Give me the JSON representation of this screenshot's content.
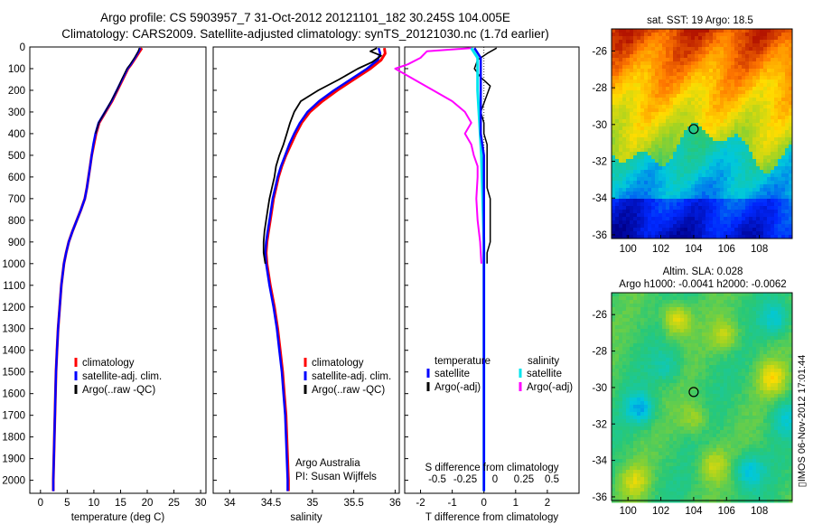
{
  "title_line1": "Argo profile: CS 5903957_7 31-Oct-2012 20121101_182 30.245S 104.005E",
  "title_line2": "Climatology: CARS2009. Satellite-adjusted climatology: synTS_20121030.nc (1.7d earlier)",
  "timestamp": "▯IMOS 06-Nov-2012 17:01:44",
  "depth_ticks": [
    "0",
    "100",
    "200",
    "300",
    "400",
    "500",
    "600",
    "700",
    "800",
    "900",
    "1000",
    "1100",
    "1200",
    "1300",
    "1400",
    "1500",
    "1600",
    "1700",
    "1800",
    "1900",
    "2000"
  ],
  "colors": {
    "climatology": "#ff0000",
    "satellite": "#0000ff",
    "argo": "#000000",
    "sal_satellite": "#00e5ee",
    "sal_argo": "#ff00ff"
  },
  "chart_data": [
    {
      "id": "temperature",
      "type": "line",
      "xlabel": "temperature (deg C)",
      "ylabel": "depth",
      "xlim": [
        -2,
        31
      ],
      "ylim": [
        2060,
        0
      ],
      "xticks": [
        "0",
        "5",
        "10",
        "15",
        "20",
        "25",
        "30"
      ],
      "legend": [
        "climatology",
        "satellite-adj. clim.",
        "Argo(..raw -QC)"
      ],
      "legend_position": "center-right",
      "series": [
        {
          "name": "climatology",
          "depth": [
            5,
            20,
            50,
            80,
            100,
            150,
            200,
            250,
            300,
            350,
            400,
            450,
            500,
            550,
            600,
            650,
            700,
            750,
            800,
            850,
            900,
            950,
            1000,
            1100,
            1200,
            1300,
            1400,
            1500,
            1600,
            1700,
            1800,
            1900,
            2000,
            2050
          ],
          "values": [
            19.0,
            18.6,
            17.8,
            17.0,
            16.4,
            15.4,
            14.4,
            13.4,
            12.2,
            11.0,
            10.4,
            10.0,
            9.6,
            9.3,
            9.0,
            8.7,
            8.3,
            7.6,
            6.8,
            6.0,
            5.3,
            4.8,
            4.4,
            3.9,
            3.6,
            3.3,
            3.1,
            2.9,
            2.8,
            2.7,
            2.6,
            2.5,
            2.4,
            2.4
          ]
        },
        {
          "name": "satellite-adj. clim.",
          "depth": [
            5,
            20,
            50,
            80,
            100,
            150,
            200,
            250,
            300,
            350,
            400,
            450,
            500,
            550,
            600,
            650,
            700,
            750,
            800,
            850,
            900,
            950,
            1000,
            1100,
            1200,
            1300,
            1400,
            1500,
            1600,
            1700,
            1800,
            1900,
            2000,
            2050
          ],
          "values": [
            18.7,
            18.4,
            17.7,
            16.9,
            16.3,
            15.3,
            14.3,
            13.3,
            12.1,
            10.9,
            10.3,
            9.9,
            9.6,
            9.3,
            9.0,
            8.7,
            8.3,
            7.6,
            6.8,
            6.0,
            5.3,
            4.8,
            4.4,
            3.9,
            3.6,
            3.3,
            3.1,
            2.9,
            2.8,
            2.7,
            2.6,
            2.5,
            2.4,
            2.4
          ]
        },
        {
          "name": "Argo(..raw -QC)",
          "depth": [
            5,
            20,
            50,
            80,
            100,
            150,
            200,
            250,
            300,
            350,
            400
          ],
          "values": [
            18.5,
            18.3,
            17.6,
            16.8,
            16.2,
            15.2,
            14.3,
            13.2,
            12.1,
            10.9,
            10.3
          ]
        }
      ]
    },
    {
      "id": "salinity",
      "type": "line",
      "xlabel": "salinity",
      "xlim": [
        33.8,
        36.05
      ],
      "ylim": [
        2060,
        0
      ],
      "xticks": [
        "34",
        "34.5",
        "35",
        "35.5",
        "36"
      ],
      "legend": [
        "climatology",
        "satellite-adj. clim.",
        "Argo(..raw -QC)"
      ],
      "legend_position": "center-right",
      "annotation": [
        "Argo Australia",
        "PI: Susan Wijffels"
      ],
      "series": [
        {
          "name": "climatology",
          "depth": [
            5,
            30,
            60,
            100,
            150,
            200,
            250,
            300,
            350,
            400,
            450,
            500,
            550,
            600,
            650,
            700,
            750,
            800,
            850,
            900,
            950,
            1000,
            1100,
            1200,
            1300,
            1400,
            1500,
            1600,
            1700,
            1800,
            1900,
            2000,
            2050
          ],
          "values": [
            35.87,
            35.88,
            35.83,
            35.7,
            35.5,
            35.3,
            35.12,
            34.97,
            34.87,
            34.8,
            34.74,
            34.68,
            34.63,
            34.59,
            34.56,
            34.53,
            34.51,
            34.49,
            34.47,
            34.45,
            34.44,
            34.45,
            34.49,
            34.54,
            34.58,
            34.61,
            34.64,
            34.66,
            34.68,
            34.69,
            34.7,
            34.71,
            34.71
          ]
        },
        {
          "name": "satellite-adj. clim.",
          "depth": [
            5,
            30,
            60,
            100,
            150,
            200,
            250,
            300,
            350,
            400,
            450,
            500,
            550,
            600,
            650,
            700,
            750,
            800,
            850,
            900,
            950,
            1000,
            1100,
            1200,
            1300,
            1400,
            1500,
            1600,
            1700,
            1800,
            1900,
            2000,
            2050
          ],
          "values": [
            35.8,
            35.82,
            35.79,
            35.66,
            35.46,
            35.26,
            35.08,
            34.94,
            34.85,
            34.78,
            34.72,
            34.67,
            34.62,
            34.58,
            34.55,
            34.52,
            34.5,
            34.48,
            34.46,
            34.44,
            34.43,
            34.44,
            34.48,
            34.53,
            34.57,
            34.6,
            34.63,
            34.65,
            34.67,
            34.68,
            34.69,
            34.7,
            34.7
          ]
        },
        {
          "name": "Argo(..raw -QC)",
          "depth": [
            5,
            20,
            40,
            70,
            100,
            150,
            200,
            250,
            300,
            350,
            400,
            450,
            500,
            550,
            600,
            650,
            700,
            750,
            800,
            850,
            900,
            950,
            1000
          ],
          "values": [
            35.78,
            35.7,
            35.83,
            35.72,
            35.55,
            35.32,
            35.07,
            34.86,
            34.78,
            34.73,
            34.69,
            34.65,
            34.6,
            34.56,
            34.54,
            34.51,
            34.48,
            34.46,
            34.44,
            34.42,
            34.41,
            34.41,
            34.43
          ]
        }
      ]
    },
    {
      "id": "difference",
      "type": "line",
      "xlabel": "T difference from climatology",
      "xlabel_top": "S difference from climatology",
      "xlim": [
        -2.5,
        3.0
      ],
      "ylim": [
        2060,
        0
      ],
      "xticks": [
        "-2",
        "-1",
        "0",
        "1",
        "2"
      ],
      "xticks_s": [
        "-0.5",
        "-0.25",
        "0",
        "0.25",
        "0.5"
      ],
      "legend_headers": [
        "temperature",
        "salinity"
      ],
      "legend": [
        "satellite",
        "Argo(-adj)",
        "satellite",
        "Argo(-adj)"
      ],
      "legend_position": "center",
      "series": [
        {
          "name": "temperature satellite",
          "depth": [
            5,
            50,
            100,
            200,
            300,
            400,
            500,
            600,
            700,
            800,
            900,
            1000,
            1200,
            1400,
            1600,
            1800,
            2000,
            2050
          ],
          "values": [
            -0.3,
            -0.1,
            -0.1,
            -0.1,
            -0.1,
            -0.1,
            0.0,
            0.0,
            0.0,
            0.0,
            0.0,
            0.0,
            0.0,
            0.0,
            0.0,
            0.0,
            0.0,
            0.0
          ]
        },
        {
          "name": "temperature Argo(-adj)",
          "depth": [
            5,
            30,
            60,
            100,
            140,
            180,
            220,
            260,
            300,
            350,
            400,
            450,
            500,
            550,
            600,
            650,
            700,
            750,
            800,
            850,
            900,
            950,
            1000
          ],
          "values": [
            0.4,
            0.1,
            -0.2,
            -0.3,
            -0.1,
            0.2,
            0.1,
            0.0,
            -0.1,
            0.0,
            0.0,
            0.1,
            0.1,
            0.1,
            0.1,
            0.1,
            0.2,
            0.2,
            0.2,
            0.2,
            0.2,
            0.1,
            0.1
          ]
        },
        {
          "name": "salinity satellite",
          "depth": [
            5,
            50,
            100,
            200,
            300,
            500,
            700,
            900,
            1100,
            1300,
            1500,
            1700,
            1900,
            2050
          ],
          "values": [
            -0.1,
            -0.05,
            -0.05,
            -0.05,
            -0.04,
            -0.02,
            -0.01,
            0.0,
            0.0,
            0.0,
            0.0,
            0.0,
            0.0,
            0.0
          ]
        },
        {
          "name": "salinity Argo(-adj)",
          "depth": [
            5,
            20,
            50,
            80,
            100,
            150,
            200,
            250,
            300,
            350,
            400,
            450,
            500,
            550,
            600,
            700,
            800,
            900,
            1000
          ],
          "values": [
            -0.1,
            -0.45,
            -0.5,
            -0.6,
            -0.7,
            -0.55,
            -0.4,
            -0.25,
            -0.15,
            -0.1,
            -0.15,
            -0.1,
            -0.08,
            -0.05,
            -0.05,
            -0.06,
            -0.05,
            -0.03,
            -0.02
          ]
        }
      ]
    },
    {
      "id": "sst_map",
      "type": "heatmap",
      "title": "sat. SST: 19  Argo: 18.5",
      "xlim": [
        99,
        110
      ],
      "ylim": [
        -36.2,
        -24.8
      ],
      "xticks": [
        "100",
        "102",
        "104",
        "106",
        "108"
      ],
      "yticks": [
        "-26",
        "-28",
        "-30",
        "-32",
        "-34",
        "-36"
      ],
      "marker": {
        "lon": 104.0,
        "lat": -30.245
      }
    },
    {
      "id": "sla_map",
      "type": "heatmap",
      "title_line1": "Altim. SLA: 0.028",
      "title_line2": "Argo h1000: -0.0041  h2000: -0.0062",
      "xlim": [
        99,
        110
      ],
      "ylim": [
        -36.2,
        -24.8
      ],
      "xticks": [
        "100",
        "102",
        "104",
        "106",
        "108"
      ],
      "yticks": [
        "-26",
        "-28",
        "-30",
        "-32",
        "-34",
        "-36"
      ],
      "marker": {
        "lon": 104.0,
        "lat": -30.245
      }
    }
  ]
}
